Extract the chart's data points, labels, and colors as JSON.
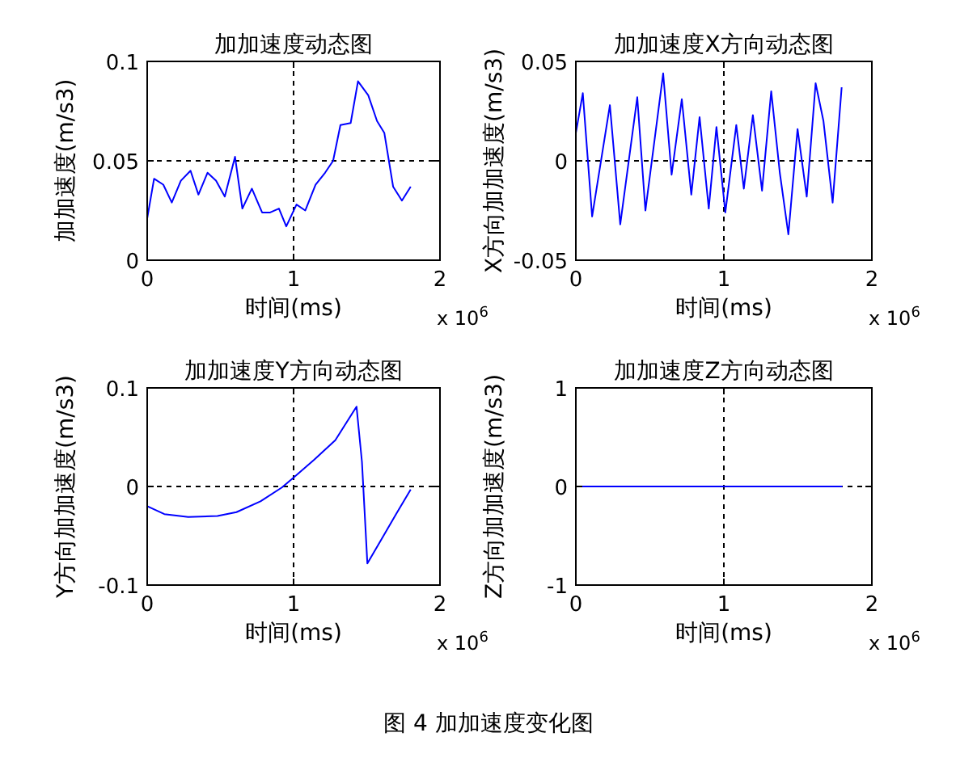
{
  "chart_data": [
    {
      "type": "line",
      "title": "加加速度动态图",
      "xlabel": "时间(ms)",
      "ylabel": "加加速度(m/s3)",
      "xlim": [
        0,
        2
      ],
      "xticks": [
        0,
        1,
        2
      ],
      "ylim": [
        0,
        0.1
      ],
      "yticks": [
        0,
        0.05,
        0.1
      ],
      "grid": true,
      "annotations": [
        "x 10$^{6}$"
      ],
      "x": [
        0,
        0.047,
        0.11,
        0.168,
        0.23,
        0.296,
        0.35,
        0.412,
        0.47,
        0.53,
        0.6,
        0.65,
        0.715,
        0.785,
        0.84,
        0.9,
        0.95,
        1.02,
        1.08,
        1.15,
        1.215,
        1.27,
        1.32,
        1.39,
        1.44,
        1.51,
        1.57,
        1.62,
        1.68,
        1.74,
        1.8
      ],
      "series": [
        {
          "color": "#0000ff",
          "values": [
            0.021,
            0.041,
            0.038,
            0.029,
            0.04,
            0.045,
            0.033,
            0.044,
            0.04,
            0.032,
            0.052,
            0.026,
            0.036,
            0.024,
            0.024,
            0.026,
            0.017,
            0.028,
            0.025,
            0.038,
            0.044,
            0.05,
            0.068,
            0.069,
            0.09,
            0.083,
            0.07,
            0.064,
            0.037,
            0.03,
            0.037
          ]
        }
      ]
    },
    {
      "type": "line",
      "title": "加加速度X方向动态图",
      "xlabel": "时间(ms)",
      "ylabel": "X方向加加速度(m/s3)",
      "xlim": [
        0,
        2
      ],
      "xticks": [
        0,
        1,
        2
      ],
      "ylim": [
        -0.05,
        0.05
      ],
      "yticks": [
        -0.05,
        0,
        0.05
      ],
      "grid": true,
      "annotations": [
        "x 10$^{6}$"
      ],
      "x": [
        0,
        0.047,
        0.11,
        0.23,
        0.3,
        0.415,
        0.47,
        0.59,
        0.647,
        0.716,
        0.78,
        0.836,
        0.898,
        0.95,
        1.01,
        1.084,
        1.135,
        1.196,
        1.258,
        1.32,
        1.378,
        1.436,
        1.498,
        1.56,
        1.62,
        1.673,
        1.735,
        1.796
      ],
      "series": [
        {
          "color": "#0000ff",
          "values": [
            0.014,
            0.034,
            -0.028,
            0.028,
            -0.032,
            0.032,
            -0.025,
            0.044,
            -0.007,
            0.031,
            -0.017,
            0.022,
            -0.024,
            0.017,
            -0.026,
            0.018,
            -0.014,
            0.023,
            -0.015,
            0.035,
            -0.006,
            -0.037,
            0.016,
            -0.018,
            0.039,
            0.02,
            -0.021,
            0.037
          ]
        }
      ]
    },
    {
      "type": "line",
      "title": "加加速度Y方向动态图",
      "xlabel": "时间(ms)",
      "ylabel": "Y方向加加速度(m/s3)",
      "xlim": [
        0,
        2
      ],
      "xticks": [
        0,
        1,
        2
      ],
      "ylim": [
        -0.1,
        0.1
      ],
      "yticks": [
        -0.1,
        0,
        0.1
      ],
      "grid": true,
      "annotations": [
        "x 10$^{6}$"
      ],
      "x": [
        0,
        0.117,
        0.28,
        0.48,
        0.61,
        0.774,
        0.92,
        1.0,
        1.14,
        1.285,
        1.43,
        1.467,
        1.504,
        1.595,
        1.7,
        1.8
      ],
      "series": [
        {
          "color": "#0000ff",
          "values": [
            -0.02,
            -0.028,
            -0.031,
            -0.03,
            -0.026,
            -0.015,
            -0.001,
            0.009,
            0.027,
            0.047,
            0.081,
            0.025,
            -0.078,
            -0.055,
            -0.028,
            -0.003
          ]
        }
      ]
    },
    {
      "type": "line",
      "title": "加加速度Z方向动态图",
      "xlabel": "时间(ms)",
      "ylabel": "Z方向加加速度(m/s3)",
      "xlim": [
        0,
        2
      ],
      "xticks": [
        0,
        1,
        2
      ],
      "ylim": [
        -1,
        1
      ],
      "yticks": [
        -1,
        0,
        1
      ],
      "grid": true,
      "annotations": [
        "x 10$^{6}$"
      ],
      "x": [
        0,
        1.8
      ],
      "series": [
        {
          "color": "#0000ff",
          "values": [
            0,
            0
          ]
        }
      ]
    },
    {
      "type": "other",
      "title": "图 4  加加速度变化图"
    }
  ]
}
